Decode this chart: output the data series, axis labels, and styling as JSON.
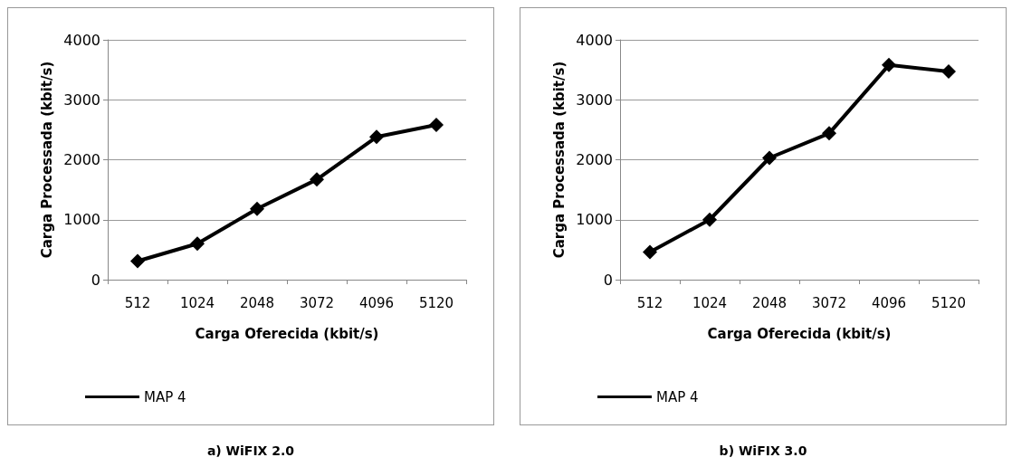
{
  "chart_data": [
    {
      "type": "line",
      "title": "a) WiFIX 2.0",
      "xlabel": "Carga Oferecida (kbit/s)",
      "ylabel": "Carga Processada (kbit/s)",
      "categories": [
        "512",
        "1024",
        "2048",
        "3072",
        "4096",
        "5120"
      ],
      "series": [
        {
          "name": "MAP 4",
          "color": "#000000",
          "values": [
            310,
            600,
            1180,
            1670,
            2380,
            2580
          ]
        }
      ],
      "ylim": [
        0,
        4000
      ],
      "yticks": [
        0,
        1000,
        2000,
        3000,
        4000
      ],
      "grid": "y",
      "legend": "bottom",
      "marker": "diamond",
      "line_style": "solid"
    },
    {
      "type": "line",
      "title": "b) WiFIX 3.0",
      "xlabel": "Carga Oferecida (kbit/s)",
      "ylabel": "Carga Processada (kbit/s)",
      "categories": [
        "512",
        "1024",
        "2048",
        "3072",
        "4096",
        "5120"
      ],
      "series": [
        {
          "name": "MAP 4",
          "color": "#000000",
          "values": [
            460,
            1000,
            2030,
            2440,
            3580,
            3470
          ]
        }
      ],
      "ylim": [
        0,
        4000
      ],
      "yticks": [
        0,
        1000,
        2000,
        3000,
        4000
      ],
      "grid": "y",
      "legend": "bottom",
      "marker": "diamond",
      "line_style": "solid"
    }
  ]
}
